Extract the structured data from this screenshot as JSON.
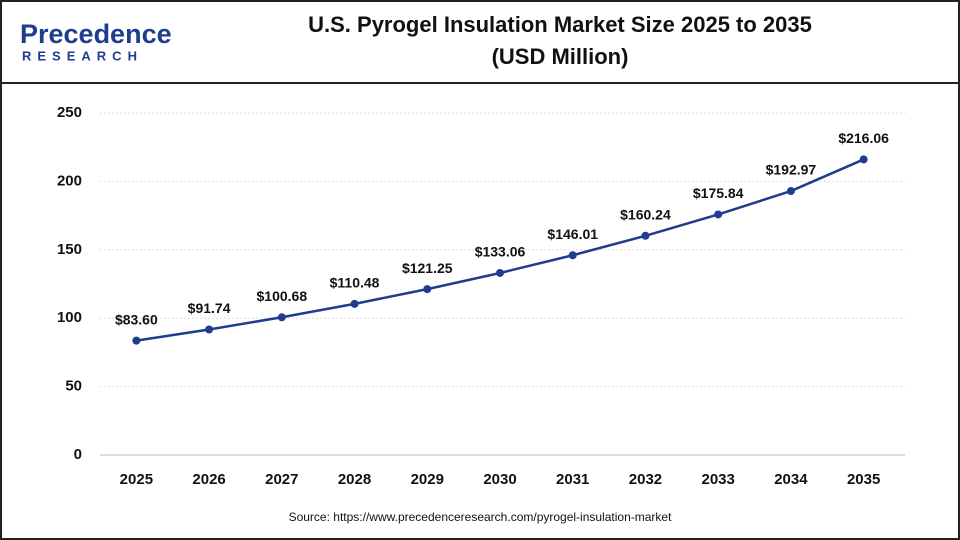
{
  "logo": {
    "name": "Precedence",
    "tagline": "RESEARCH"
  },
  "chart_data": {
    "type": "line",
    "title": "U.S. Pyrogel Insulation Market Size 2025 to 2035",
    "subtitle": "(USD Million)",
    "categories": [
      "2025",
      "2026",
      "2027",
      "2028",
      "2029",
      "2030",
      "2031",
      "2032",
      "2033",
      "2034",
      "2035"
    ],
    "series": [
      {
        "color": "#1f3c8f",
        "values": [
          83.6,
          91.74,
          100.68,
          110.48,
          121.25,
          133.06,
          146.01,
          160.24,
          175.84,
          192.97,
          216.06
        ],
        "value_labels": [
          "$83.60",
          "$91.74",
          "$100.68",
          "$110.48",
          "$121.25",
          "$133.06",
          "$146.01",
          "$160.24",
          "$175.84",
          "$192.97",
          "$216.06"
        ]
      }
    ],
    "ylim": [
      0,
      250
    ],
    "yticks": [
      0,
      50,
      100,
      150,
      200,
      250
    ],
    "grid": true,
    "source": "Source: https://www.precedenceresearch.com/pyrogel-insulation-market"
  }
}
